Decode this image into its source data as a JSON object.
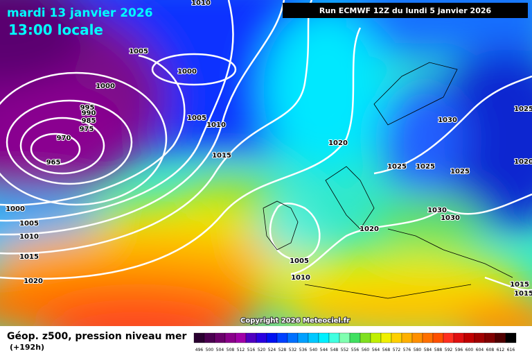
{
  "header": {
    "date": "mardi 13 janvier 2026",
    "time": "13:00 locale",
    "run": "Run ECMWF 12Z du lundi 5 janvier 2026"
  },
  "copyright": "Copyright 2026 Meteociel.fr",
  "footer": {
    "title": "Géop. z500, pression niveau mer",
    "lead": "(+192h)"
  },
  "scale": {
    "values": [
      496,
      500,
      504,
      508,
      512,
      516,
      520,
      524,
      528,
      532,
      536,
      540,
      544,
      548,
      552,
      556,
      560,
      564,
      568,
      572,
      576,
      580,
      584,
      588,
      592,
      596,
      600,
      604,
      608,
      612,
      616
    ],
    "colors": [
      "#2a0030",
      "#4b0050",
      "#6a006a",
      "#8a008a",
      "#a000a8",
      "#5000c0",
      "#2a00e0",
      "#0010f0",
      "#0040ff",
      "#0070ff",
      "#00a0ff",
      "#00c8ff",
      "#00f0ff",
      "#40ffe0",
      "#80ffb0",
      "#40e060",
      "#80e020",
      "#c0f000",
      "#f0f000",
      "#ffd000",
      "#ffb000",
      "#ff9000",
      "#ff7000",
      "#ff5000",
      "#ff3020",
      "#e01010",
      "#c00000",
      "#a00000",
      "#800000",
      "#500000",
      "#000000"
    ]
  },
  "isobar_labels": [
    1010,
    1005,
    1000,
    1000,
    995,
    990,
    985,
    975,
    970,
    965,
    1005,
    1010,
    1015,
    1020,
    1025,
    1025,
    1030,
    1025,
    1020,
    1025,
    1030,
    1030,
    1020,
    1000,
    1005,
    1010,
    1015,
    1020,
    1005,
    1010,
    1015,
    1015
  ]
}
